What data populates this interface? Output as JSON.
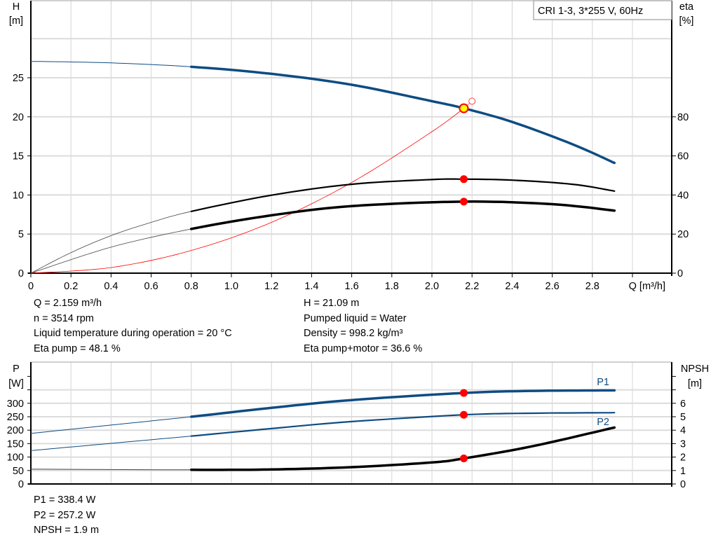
{
  "chart_data": [
    {
      "type": "line",
      "legend_title": "CRI 1-3, 3*255 V, 60Hz",
      "xlabel": "Q [m³/h]",
      "ylabel_left": [
        "H",
        "[m]"
      ],
      "ylabel_right": [
        "eta",
        "[%]"
      ],
      "xlim": [
        0,
        3.2
      ],
      "ylim_left": [
        0,
        35
      ],
      "ylim_right": [
        0,
        140
      ],
      "x_ticks": [
        "0",
        "0.2",
        "0.4",
        "0.6",
        "0.8",
        "1.0",
        "1.2",
        "1.4",
        "1.6",
        "1.8",
        "2.0",
        "2.2",
        "2.4",
        "2.6",
        "2.8"
      ],
      "y_ticks_left": [
        "0",
        "5",
        "10",
        "15",
        "20",
        "25"
      ],
      "y_ticks_right": [
        "0",
        "20",
        "40",
        "60",
        "80"
      ],
      "grid": true,
      "series": [
        {
          "key": "H",
          "axis": "left",
          "color": "#0e4c82",
          "points": [
            [
              0,
              27.1
            ],
            [
              0.4,
              26.9
            ],
            [
              0.8,
              26.4
            ],
            [
              1.2,
              25.5
            ],
            [
              1.6,
              24.1
            ],
            [
              2.0,
              22.0
            ],
            [
              2.159,
              21.09
            ],
            [
              2.4,
              19.35
            ],
            [
              2.7,
              16.5
            ],
            [
              2.91,
              14.1
            ]
          ]
        },
        {
          "key": "eta_pump",
          "axis": "right",
          "color": "#000000",
          "points": [
            [
              0,
              0
            ],
            [
              0.2,
              10.5
            ],
            [
              0.4,
              19.2
            ],
            [
              0.6,
              26
            ],
            [
              0.8,
              31.6
            ],
            [
              1.2,
              39.9
            ],
            [
              1.6,
              45.5
            ],
            [
              2.0,
              47.9
            ],
            [
              2.159,
              48.1
            ],
            [
              2.4,
              47.6
            ],
            [
              2.7,
              45.5
            ],
            [
              2.91,
              42
            ]
          ]
        },
        {
          "key": "eta_pump_motor",
          "axis": "right",
          "color": "#000000",
          "points": [
            [
              0,
              0
            ],
            [
              0.4,
              13.3
            ],
            [
              0.8,
              22.6
            ],
            [
              1.2,
              29.6
            ],
            [
              1.6,
              34.3
            ],
            [
              2.159,
              36.6
            ],
            [
              2.6,
              35.3
            ],
            [
              2.91,
              32
            ]
          ]
        },
        {
          "key": "system_curve",
          "axis": "left",
          "color": "#ff0000",
          "formula": "H = 4.524 * Q^2",
          "points": [
            [
              0,
              0
            ],
            [
              0.4,
              0.72
            ],
            [
              0.8,
              2.9
            ],
            [
              1.2,
              6.5
            ],
            [
              1.6,
              11.6
            ],
            [
              2.0,
              18.1
            ],
            [
              2.159,
              21.09
            ]
          ]
        }
      ],
      "duty_point": {
        "Q": 2.159,
        "H": 21.09,
        "eta_pump": 48.1,
        "eta_pump_motor": 36.6
      },
      "requested_point": {
        "Q": 2.2,
        "H": 22.0
      },
      "colors": {
        "duty_fill": "#ffff00",
        "marker": "#ff0000",
        "grid": "#d4d4d4"
      }
    },
    {
      "type": "line",
      "ylabel_left": [
        "P",
        "[W]"
      ],
      "ylabel_right": [
        "NPSH",
        "[m]"
      ],
      "xlim": [
        0,
        3.2
      ],
      "ylim_left": [
        0,
        450
      ],
      "ylim_right": [
        0,
        9
      ],
      "y_ticks_left": [
        "0",
        "50",
        "100",
        "150",
        "200",
        "250",
        "300"
      ],
      "y_ticks_right": [
        "0",
        "1",
        "2",
        "3",
        "4",
        "5",
        "6"
      ],
      "grid": true,
      "series": [
        {
          "name": "P1",
          "axis": "left",
          "color": "#0e4c82",
          "points": [
            [
              0,
              188
            ],
            [
              0.4,
              219
            ],
            [
              0.8,
              250
            ],
            [
              1.2,
              283
            ],
            [
              1.6,
              312
            ],
            [
              2.159,
              338.4
            ],
            [
              2.5,
              346
            ],
            [
              2.91,
              348
            ]
          ]
        },
        {
          "name": "P2",
          "axis": "left",
          "color": "#0e4c82",
          "points": [
            [
              0,
              124
            ],
            [
              0.4,
              151
            ],
            [
              0.8,
              178
            ],
            [
              1.2,
              206
            ],
            [
              1.6,
              232
            ],
            [
              2.159,
              257.2
            ],
            [
              2.5,
              263
            ],
            [
              2.91,
              265
            ]
          ]
        },
        {
          "key": "NPSH",
          "axis": "right",
          "color": "#000000",
          "points": [
            [
              0,
              1.1
            ],
            [
              0.8,
              1.05
            ],
            [
              1.2,
              1.08
            ],
            [
              1.6,
              1.25
            ],
            [
              2.0,
              1.6
            ],
            [
              2.159,
              1.9
            ],
            [
              2.5,
              2.8
            ],
            [
              2.91,
              4.2
            ]
          ]
        }
      ],
      "duty_point": {
        "Q": 2.159,
        "P1": 338.4,
        "P2": 257.2,
        "NPSH": 1.9
      }
    }
  ],
  "info_top_left": [
    "Q = 2.159 m³/h",
    "n = 3514 rpm",
    "Liquid temperature during operation = 20 °C",
    "Eta pump = 48.1 %"
  ],
  "info_top_right": [
    "H = 21.09 m",
    "Pumped liquid = Water",
    "Density = 998.2 kg/m³",
    "Eta pump+motor = 36.6 %"
  ],
  "info_bottom": [
    "P1 = 338.4 W",
    "P2 = 257.2 W",
    "NPSH = 1.9 m"
  ]
}
